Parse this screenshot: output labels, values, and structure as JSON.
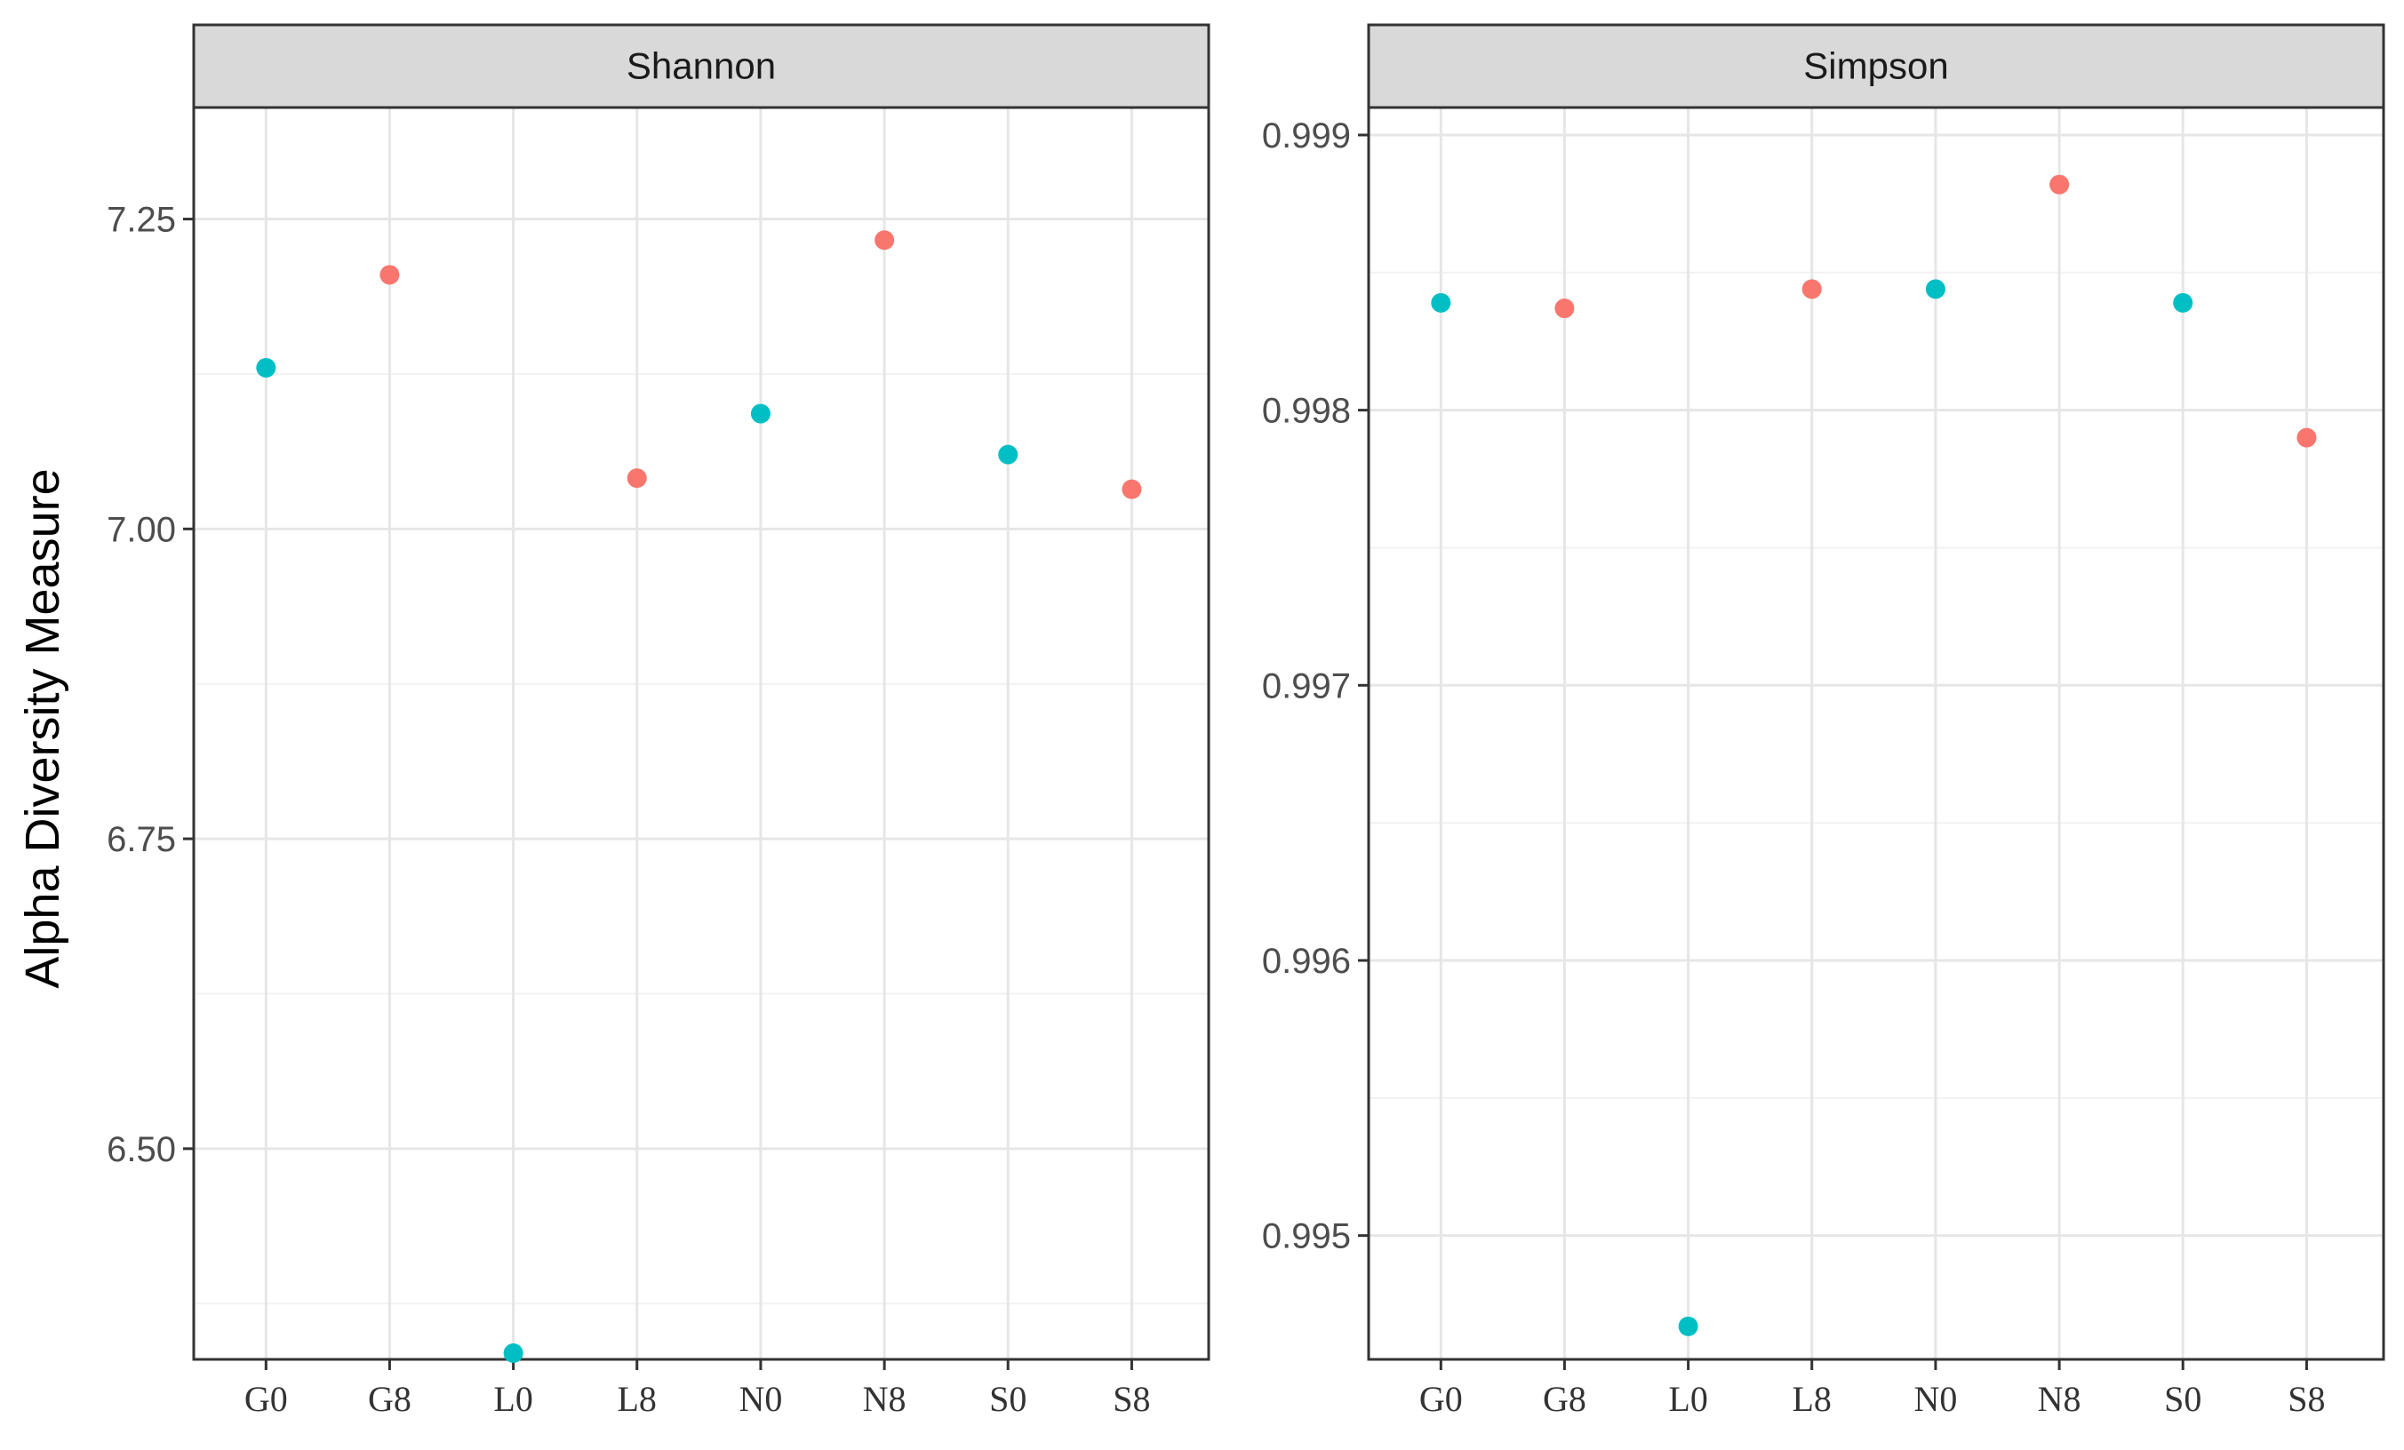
{
  "chart_data": {
    "type": "scatter",
    "ylabel": "Alpha Diversity Measure",
    "categories": [
      "G0",
      "G8",
      "L0",
      "L8",
      "N0",
      "N8",
      "S0",
      "S8"
    ],
    "colors": {
      "teal": "#00BFC4",
      "salmon": "#F8766D"
    },
    "point_colors": [
      "teal",
      "salmon",
      "teal",
      "salmon",
      "teal",
      "salmon",
      "teal",
      "salmon"
    ],
    "panels": [
      {
        "strip_label": "Shannon",
        "ylim": [
          6.33,
          7.34
        ],
        "yticks": [
          6.5,
          6.75,
          7.0,
          7.25
        ],
        "ytick_labels": [
          "6.50",
          "6.75",
          "7.00",
          "7.25"
        ],
        "minor_yticks": [
          6.375,
          6.625,
          6.875,
          7.125
        ],
        "values": [
          7.13,
          7.205,
          6.335,
          7.041,
          7.093,
          7.233,
          7.06,
          7.032
        ]
      },
      {
        "strip_label": "Simpson",
        "ylim": [
          0.99455,
          0.9991
        ],
        "yticks": [
          0.995,
          0.996,
          0.997,
          0.998,
          0.999
        ],
        "ytick_labels": [
          "0.995",
          "0.996",
          "0.997",
          "0.998",
          "0.999"
        ],
        "minor_yticks": [
          0.9955,
          0.9965,
          0.9975,
          0.9985
        ],
        "values": [
          0.99839,
          0.99837,
          0.99467,
          0.99844,
          0.99844,
          0.99882,
          0.99839,
          0.9979
        ]
      }
    ]
  }
}
